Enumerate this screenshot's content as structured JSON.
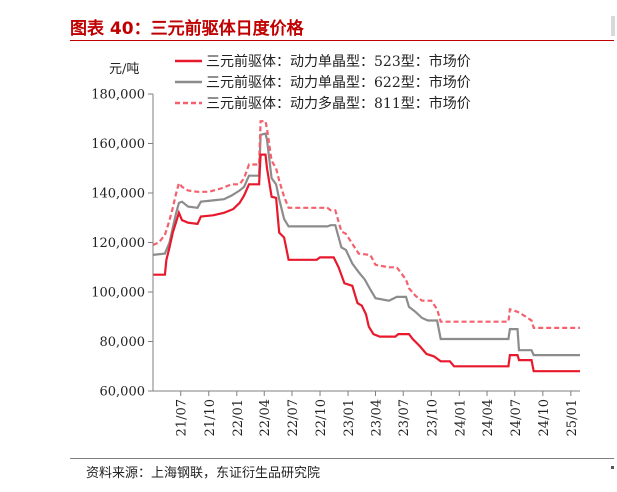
{
  "header": {
    "title": "图表 40：三元前驱体日度价格"
  },
  "footer": {
    "source": "资料来源：上海钢联，东证衍生品研究院"
  },
  "chart_data": {
    "type": "line",
    "unit_label": "元/吨",
    "ylim": [
      60000,
      180000
    ],
    "y_ticks": [
      60000,
      80000,
      100000,
      120000,
      140000,
      160000,
      180000
    ],
    "y_tick_labels": [
      "60,000",
      "80,000",
      "100,000",
      "120,000",
      "140,000",
      "160,000",
      "180,000"
    ],
    "x_range": [
      "2021-04-01",
      "2025-01-31"
    ],
    "x_ticks": [
      "21/07",
      "21/10",
      "22/01",
      "22/04",
      "22/07",
      "22/10",
      "23/01",
      "23/04",
      "23/07",
      "23/10",
      "24/01",
      "24/04",
      "24/07",
      "24/10",
      "25/01"
    ],
    "x_tick_dates": [
      "2021-07-01",
      "2021-10-01",
      "2022-01-01",
      "2022-04-01",
      "2022-07-01",
      "2022-10-01",
      "2023-01-01",
      "2023-04-01",
      "2023-07-01",
      "2023-10-01",
      "2024-01-01",
      "2024-04-01",
      "2024-07-01",
      "2024-10-01",
      "2025-01-01"
    ],
    "legend_position": "top-left",
    "grid": false,
    "series": [
      {
        "name": "三元前驱体：动力单晶型：523型：市场价",
        "color": "#e8192c",
        "dash": "solid",
        "points": [
          [
            "2021-04-01",
            107000
          ],
          [
            "2021-05-10",
            107000
          ],
          [
            "2021-05-15",
            113000
          ],
          [
            "2021-05-25",
            118000
          ],
          [
            "2021-06-05",
            124000
          ],
          [
            "2021-06-15",
            128000
          ],
          [
            "2021-06-25",
            132000
          ],
          [
            "2021-07-05",
            129000
          ],
          [
            "2021-07-25",
            128000
          ],
          [
            "2021-08-25",
            127500
          ],
          [
            "2021-09-05",
            130500
          ],
          [
            "2021-10-15",
            131000
          ],
          [
            "2021-11-20",
            132000
          ],
          [
            "2021-12-20",
            133500
          ],
          [
            "2022-01-10",
            136000
          ],
          [
            "2022-01-25",
            139000
          ],
          [
            "2022-02-10",
            143500
          ],
          [
            "2022-03-15",
            143500
          ],
          [
            "2022-03-20",
            155500
          ],
          [
            "2022-04-05",
            155500
          ],
          [
            "2022-04-10",
            150000
          ],
          [
            "2022-04-25",
            138500
          ],
          [
            "2022-05-10",
            138000
          ],
          [
            "2022-05-20",
            124000
          ],
          [
            "2022-06-05",
            122000
          ],
          [
            "2022-06-20",
            113000
          ],
          [
            "2022-09-20",
            113000
          ],
          [
            "2022-10-01",
            114000
          ],
          [
            "2022-11-15",
            114000
          ],
          [
            "2022-12-01",
            110000
          ],
          [
            "2022-12-20",
            103500
          ],
          [
            "2023-01-15",
            102500
          ],
          [
            "2023-02-01",
            95500
          ],
          [
            "2023-02-15",
            94500
          ],
          [
            "2023-03-01",
            91000
          ],
          [
            "2023-03-10",
            86000
          ],
          [
            "2023-03-25",
            83000
          ],
          [
            "2023-04-15",
            82000
          ],
          [
            "2023-06-05",
            82000
          ],
          [
            "2023-06-15",
            83000
          ],
          [
            "2023-07-20",
            83000
          ],
          [
            "2023-08-01",
            81000
          ],
          [
            "2023-08-25",
            78000
          ],
          [
            "2023-09-15",
            75000
          ],
          [
            "2023-10-10",
            74000
          ],
          [
            "2023-11-01",
            72000
          ],
          [
            "2023-12-01",
            72000
          ],
          [
            "2023-12-15",
            70000
          ],
          [
            "2024-06-10",
            70000
          ],
          [
            "2024-06-15",
            74500
          ],
          [
            "2024-07-10",
            74500
          ],
          [
            "2024-07-15",
            72500
          ],
          [
            "2024-08-25",
            72500
          ],
          [
            "2024-09-01",
            68000
          ],
          [
            "2025-01-31",
            68000
          ]
        ]
      },
      {
        "name": "三元前驱体：动力单晶型：622型：市场价",
        "color": "#8c8c8c",
        "dash": "solid",
        "points": [
          [
            "2021-04-01",
            115000
          ],
          [
            "2021-05-10",
            115500
          ],
          [
            "2021-05-25",
            120000
          ],
          [
            "2021-06-05",
            126000
          ],
          [
            "2021-06-15",
            131500
          ],
          [
            "2021-06-25",
            136000
          ],
          [
            "2021-07-05",
            136500
          ],
          [
            "2021-07-25",
            134500
          ],
          [
            "2021-08-25",
            134000
          ],
          [
            "2021-09-05",
            136500
          ],
          [
            "2021-10-15",
            137000
          ],
          [
            "2021-11-20",
            137500
          ],
          [
            "2021-12-15",
            139000
          ],
          [
            "2022-01-10",
            141000
          ],
          [
            "2022-01-25",
            142500
          ],
          [
            "2022-02-10",
            147000
          ],
          [
            "2022-03-15",
            147000
          ],
          [
            "2022-03-20",
            163500
          ],
          [
            "2022-04-05",
            164000
          ],
          [
            "2022-04-10",
            161500
          ],
          [
            "2022-04-25",
            146000
          ],
          [
            "2022-05-10",
            143500
          ],
          [
            "2022-05-20",
            137500
          ],
          [
            "2022-06-05",
            129500
          ],
          [
            "2022-06-20",
            126500
          ],
          [
            "2022-10-25",
            126500
          ],
          [
            "2022-11-05",
            127000
          ],
          [
            "2022-11-20",
            127000
          ],
          [
            "2022-12-10",
            118000
          ],
          [
            "2022-12-25",
            117000
          ],
          [
            "2023-01-15",
            111500
          ],
          [
            "2023-02-05",
            108000
          ],
          [
            "2023-02-25",
            105000
          ],
          [
            "2023-03-15",
            101000
          ],
          [
            "2023-04-01",
            97500
          ],
          [
            "2023-05-15",
            96500
          ],
          [
            "2023-06-10",
            98000
          ],
          [
            "2023-07-10",
            98000
          ],
          [
            "2023-07-20",
            94000
          ],
          [
            "2023-08-10",
            92000
          ],
          [
            "2023-09-01",
            89500
          ],
          [
            "2023-09-20",
            88500
          ],
          [
            "2023-10-20",
            88500
          ],
          [
            "2023-11-01",
            81000
          ],
          [
            "2024-06-10",
            81000
          ],
          [
            "2024-06-15",
            85000
          ],
          [
            "2024-07-10",
            85000
          ],
          [
            "2024-07-15",
            76500
          ],
          [
            "2024-08-25",
            76500
          ],
          [
            "2024-09-01",
            74500
          ],
          [
            "2025-01-31",
            74500
          ]
        ]
      },
      {
        "name": "三元前驱体：动力多晶型：811型：市场价",
        "color": "#f4606c",
        "dash": "dashed",
        "points": [
          [
            "2021-04-01",
            119000
          ],
          [
            "2021-04-20",
            120000
          ],
          [
            "2021-05-10",
            123000
          ],
          [
            "2021-05-25",
            129000
          ],
          [
            "2021-06-05",
            134000
          ],
          [
            "2021-06-15",
            139500
          ],
          [
            "2021-06-25",
            144000
          ],
          [
            "2021-07-05",
            142500
          ],
          [
            "2021-07-25",
            141000
          ],
          [
            "2021-08-25",
            140500
          ],
          [
            "2021-10-01",
            140500
          ],
          [
            "2021-11-15",
            142000
          ],
          [
            "2021-12-15",
            143500
          ],
          [
            "2022-01-10",
            143500
          ],
          [
            "2022-01-25",
            146000
          ],
          [
            "2022-02-10",
            151500
          ],
          [
            "2022-03-15",
            151500
          ],
          [
            "2022-03-20",
            169000
          ],
          [
            "2022-04-05",
            169000
          ],
          [
            "2022-04-10",
            166000
          ],
          [
            "2022-04-25",
            153000
          ],
          [
            "2022-05-10",
            150000
          ],
          [
            "2022-05-20",
            145000
          ],
          [
            "2022-06-05",
            138500
          ],
          [
            "2022-06-20",
            134000
          ],
          [
            "2022-10-25",
            134000
          ],
          [
            "2022-11-05",
            133000
          ],
          [
            "2022-11-20",
            133000
          ],
          [
            "2022-12-10",
            124500
          ],
          [
            "2022-12-25",
            123500
          ],
          [
            "2023-01-15",
            119500
          ],
          [
            "2023-02-05",
            115500
          ],
          [
            "2023-03-15",
            115000
          ],
          [
            "2023-04-01",
            111000
          ],
          [
            "2023-05-15",
            110000
          ],
          [
            "2023-06-10",
            110000
          ],
          [
            "2023-07-10",
            105000
          ],
          [
            "2023-07-20",
            101500
          ],
          [
            "2023-08-10",
            98500
          ],
          [
            "2023-09-01",
            96500
          ],
          [
            "2023-10-01",
            96500
          ],
          [
            "2023-10-20",
            93000
          ],
          [
            "2023-11-01",
            88000
          ],
          [
            "2024-06-10",
            88000
          ],
          [
            "2024-06-15",
            93000
          ],
          [
            "2024-07-10",
            92000
          ],
          [
            "2024-07-25",
            91000
          ],
          [
            "2024-08-25",
            88500
          ],
          [
            "2024-09-01",
            85500
          ],
          [
            "2025-01-31",
            85500
          ]
        ]
      }
    ]
  }
}
